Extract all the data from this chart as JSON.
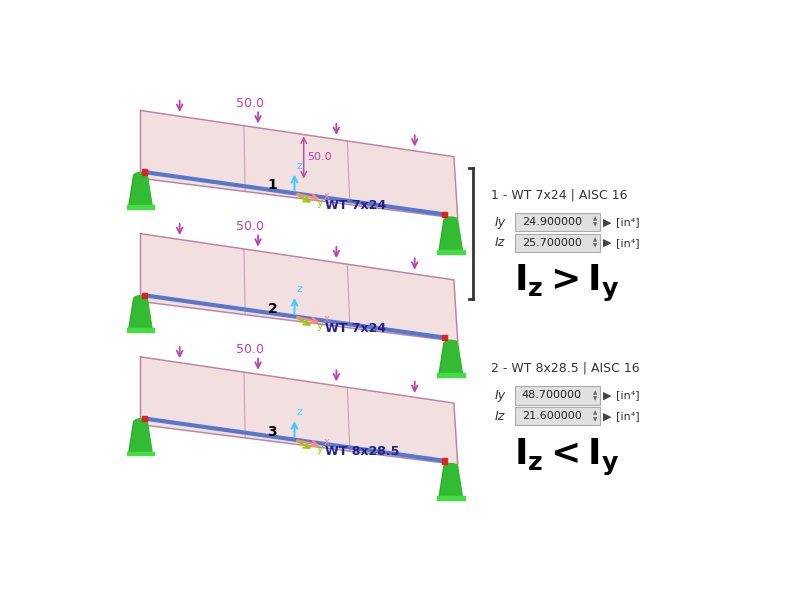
{
  "background_color": "#ffffff",
  "beam_color": "#5577cc",
  "plate_fill": "#e8c8c8",
  "plate_edge": "#c080a0",
  "plate_alpha": 0.55,
  "support_color": "#33bb33",
  "support_dark": "#228822",
  "arrow_color": "#bb44aa",
  "axis_z_color": "#44ccff",
  "axis_y_color": "#99cc00",
  "axis_x_color": "#ff8888",
  "red_pin": "#dd2222",
  "beams": [
    {
      "label": "1",
      "section": "WT 7x24",
      "load": "50.0",
      "has_side_50": true
    },
    {
      "label": "2",
      "section": "WT 7x24",
      "load": "50.0",
      "has_side_50": false
    },
    {
      "label": "3",
      "section": "WT 8x28.5",
      "load": "50.0",
      "has_side_50": false
    }
  ],
  "panel1_title": "1 - WT 7x24 | AISC 16",
  "panel1_rows": [
    {
      "label": "Iy",
      "value": "24.900000"
    },
    {
      "label": "Iz",
      "value": "25.700000"
    }
  ],
  "panel1_units": "[in⁴]",
  "panel1_cmp_main": "I",
  "panel1_cmp": "I₂ > Iᵧ",
  "panel2_title": "2 - WT 8x28.5 | AISC 16",
  "panel2_rows": [
    {
      "label": "Iy",
      "value": "48.700000"
    },
    {
      "label": "Iz",
      "value": "21.600000"
    }
  ],
  "panel2_units": "[in⁴]",
  "panel2_cmp": "I₂ < Iᵧ"
}
